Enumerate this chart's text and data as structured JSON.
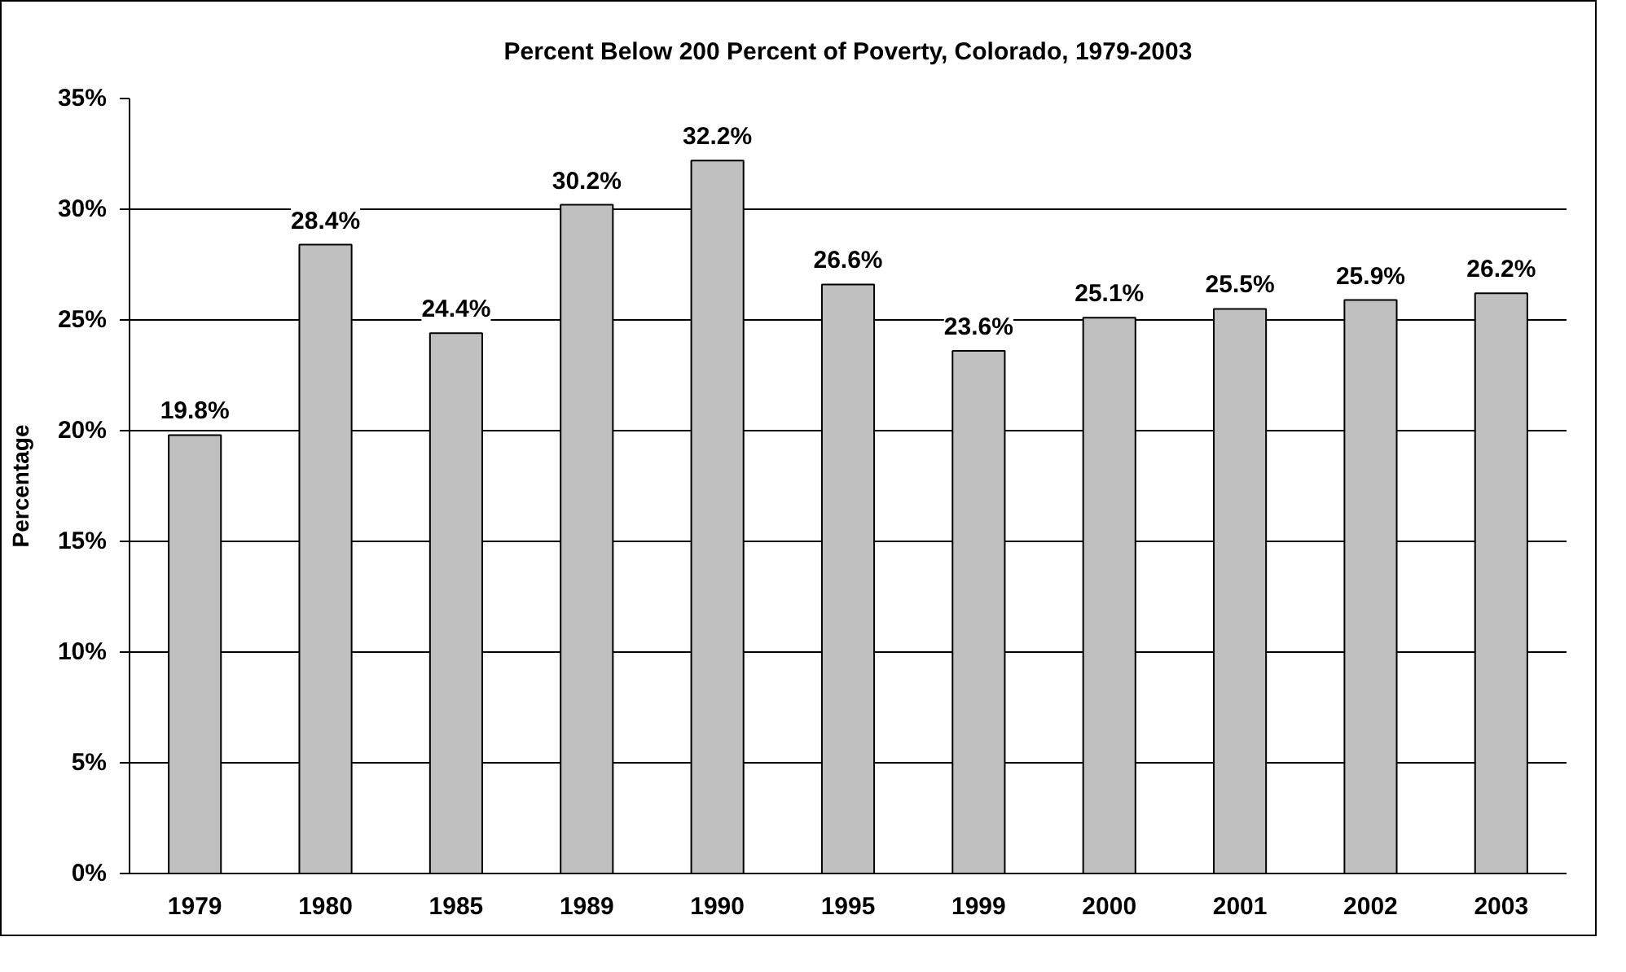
{
  "chart_data": {
    "type": "bar",
    "title": "Percent Below 200 Percent of Poverty, Colorado, 1979-2003",
    "ylabel": "Percentage",
    "categories": [
      "1979",
      "1980",
      "1985",
      "1989",
      "1990",
      "1995",
      "1999",
      "2000",
      "2001",
      "2002",
      "2003"
    ],
    "values": [
      19.8,
      28.4,
      24.4,
      30.2,
      32.2,
      26.6,
      23.6,
      25.1,
      25.5,
      25.9,
      26.2
    ],
    "value_labels": [
      "19.8%",
      "28.4%",
      "24.4%",
      "30.2%",
      "32.2%",
      "26.6%",
      "23.6%",
      "25.1%",
      "25.5%",
      "25.9%",
      "26.2%"
    ],
    "color": "#c0c0c0",
    "ylim": [
      0,
      35
    ],
    "yticks": [
      {
        "value": 0,
        "label": "0%"
      },
      {
        "value": 5,
        "label": "5%"
      },
      {
        "value": 10,
        "label": "10%"
      },
      {
        "value": 15,
        "label": "15%"
      },
      {
        "value": 20,
        "label": "20%"
      },
      {
        "value": 25,
        "label": "25%"
      },
      {
        "value": 30,
        "label": "30%"
      },
      {
        "value": 35,
        "label": "35%"
      }
    ],
    "grid": "y"
  }
}
